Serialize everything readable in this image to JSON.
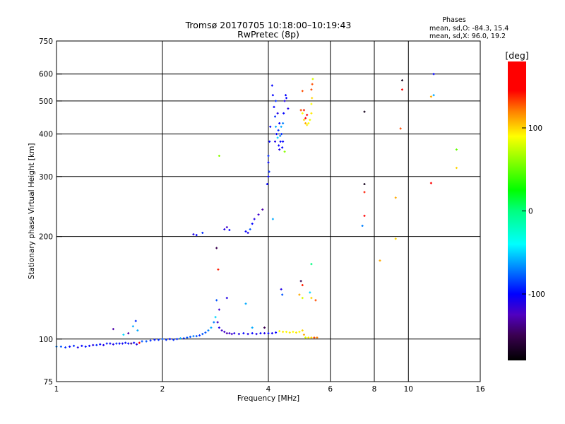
{
  "chart_data": {
    "type": "scatter",
    "title": "Tromsø 20170705 10:18:00–10:19:43",
    "subtitle": "RwPretec (8p)",
    "xlabel": "Frequency [MHz]",
    "ylabel": "Stationary phase Virtual Height [km]",
    "xscale": "log",
    "yscale": "log",
    "xlim": [
      1,
      16
    ],
    "ylim": [
      75,
      750
    ],
    "grid": true,
    "xticks": [
      1,
      2,
      4,
      6,
      8,
      10,
      16
    ],
    "xtick_labels": [
      "1",
      "2",
      "4",
      "6",
      "8",
      "10",
      "16"
    ],
    "xgrid": [
      2,
      4,
      6,
      8,
      10
    ],
    "yticks": [
      75,
      100,
      200,
      300,
      400,
      500,
      600,
      750
    ],
    "ytick_labels": [
      "75",
      "100",
      "200",
      "300",
      "400",
      "500",
      "600",
      "750"
    ],
    "ygrid": [
      100,
      200,
      300,
      400,
      500,
      600
    ],
    "stats": {
      "heading": "Phases",
      "line_o": "mean, sd,O: -84.3, 15.4",
      "line_x": "mean, sd,X:  96.0, 19.2"
    },
    "colorbar": {
      "label": "[deg]",
      "range": [
        -180,
        180
      ],
      "ticks": [
        100,
        0,
        -100
      ],
      "tick_labels": [
        "100",
        "0",
        "-100"
      ],
      "stops": [
        [
          -180,
          "#000000"
        ],
        [
          -150,
          "#3a0050"
        ],
        [
          -125,
          "#5000c0"
        ],
        [
          -100,
          "#0000ff"
        ],
        [
          -70,
          "#0080ff"
        ],
        [
          -40,
          "#00ffff"
        ],
        [
          0,
          "#00ff80"
        ],
        [
          25,
          "#00ff00"
        ],
        [
          90,
          "#ffff00"
        ],
        [
          120,
          "#ff8000"
        ],
        [
          145,
          "#ff0000"
        ],
        [
          180,
          "#ff0000"
        ]
      ]
    },
    "point_fields": [
      "frequency_MHz",
      "height_km",
      "phase_deg"
    ],
    "points": [
      [
        1.0,
        95,
        -70
      ],
      [
        1.03,
        95,
        -80
      ],
      [
        1.06,
        94.5,
        -90
      ],
      [
        1.09,
        95,
        -100
      ],
      [
        1.12,
        95.5,
        -90
      ],
      [
        1.15,
        94.5,
        -110
      ],
      [
        1.18,
        95.5,
        -100
      ],
      [
        1.21,
        95,
        -95
      ],
      [
        1.24,
        95.5,
        -100
      ],
      [
        1.27,
        96,
        -110
      ],
      [
        1.3,
        96,
        -90
      ],
      [
        1.33,
        96.5,
        -100
      ],
      [
        1.36,
        96,
        -110
      ],
      [
        1.39,
        97,
        -95
      ],
      [
        1.42,
        97,
        -100
      ],
      [
        1.45,
        96.5,
        -110
      ],
      [
        1.48,
        97,
        -90
      ],
      [
        1.51,
        97,
        -100
      ],
      [
        1.54,
        97,
        -105
      ],
      [
        1.57,
        97.5,
        -95
      ],
      [
        1.6,
        97,
        -100
      ],
      [
        1.63,
        97,
        -140
      ],
      [
        1.66,
        97.5,
        -100
      ],
      [
        1.69,
        96.5,
        -110
      ],
      [
        1.72,
        97.5,
        165
      ],
      [
        1.75,
        98.5,
        -80
      ],
      [
        1.8,
        98.5,
        -80
      ],
      [
        1.85,
        99,
        -90
      ],
      [
        1.9,
        99.5,
        -95
      ],
      [
        1.95,
        99.5,
        -90
      ],
      [
        2.0,
        100,
        -80
      ],
      [
        2.05,
        99.5,
        -90
      ],
      [
        2.1,
        100,
        -100
      ],
      [
        2.15,
        99.5,
        -90
      ],
      [
        2.2,
        100,
        -90
      ],
      [
        2.25,
        100.5,
        -60
      ],
      [
        2.3,
        100.5,
        -90
      ],
      [
        2.35,
        101,
        -80
      ],
      [
        2.4,
        101.5,
        -80
      ],
      [
        2.45,
        102,
        -70
      ],
      [
        2.5,
        102,
        -80
      ],
      [
        2.55,
        102.5,
        -90
      ],
      [
        2.6,
        103.5,
        -80
      ],
      [
        2.65,
        104.5,
        -80
      ],
      [
        2.7,
        106,
        -70
      ],
      [
        2.75,
        108,
        -60
      ],
      [
        2.8,
        112,
        -70
      ],
      [
        2.83,
        116,
        -50
      ],
      [
        2.87,
        112,
        -120
      ],
      [
        2.9,
        108,
        -110
      ],
      [
        2.95,
        106,
        -120
      ],
      [
        3.0,
        105,
        -120
      ],
      [
        3.05,
        104,
        -130
      ],
      [
        3.1,
        104,
        -120
      ],
      [
        3.15,
        103.5,
        -120
      ],
      [
        3.2,
        104,
        -110
      ],
      [
        3.3,
        103.5,
        -110
      ],
      [
        3.4,
        104,
        -100
      ],
      [
        3.5,
        103.5,
        -110
      ],
      [
        3.6,
        104,
        -100
      ],
      [
        3.7,
        103.5,
        -110
      ],
      [
        3.8,
        104,
        -100
      ],
      [
        3.9,
        104,
        -110
      ],
      [
        4.0,
        104,
        -100
      ],
      [
        4.1,
        104,
        -105
      ],
      [
        4.2,
        104.5,
        -100
      ],
      [
        4.3,
        105.5,
        90
      ],
      [
        4.4,
        105,
        95
      ],
      [
        4.5,
        105,
        90
      ],
      [
        4.6,
        104.5,
        95
      ],
      [
        4.7,
        105,
        90
      ],
      [
        4.8,
        104.5,
        95
      ],
      [
        4.9,
        105,
        90
      ],
      [
        5.0,
        106,
        100
      ],
      [
        5.05,
        103,
        110
      ],
      [
        5.1,
        101,
        80
      ],
      [
        5.2,
        101,
        95
      ],
      [
        5.3,
        101,
        100
      ],
      [
        5.4,
        101,
        130
      ],
      [
        5.5,
        101,
        120
      ],
      [
        1.45,
        107,
        -130
      ],
      [
        1.55,
        103,
        -50
      ],
      [
        1.6,
        104,
        -130
      ],
      [
        1.68,
        113,
        -90
      ],
      [
        1.65,
        109,
        -60
      ],
      [
        1.7,
        106,
        -60
      ],
      [
        2.85,
        130,
        -80
      ],
      [
        2.9,
        122,
        -120
      ],
      [
        2.85,
        185,
        -150
      ],
      [
        2.88,
        160,
        140
      ],
      [
        3.05,
        132,
        -110
      ],
      [
        3.45,
        127,
        -60
      ],
      [
        4.35,
        140,
        -110
      ],
      [
        4.38,
        135,
        -80
      ],
      [
        4.95,
        148,
        -150
      ],
      [
        5.0,
        144,
        140
      ],
      [
        4.9,
        135,
        110
      ],
      [
        5.0,
        132,
        80
      ],
      [
        5.25,
        137,
        -50
      ],
      [
        5.3,
        132,
        100
      ],
      [
        5.45,
        130,
        130
      ],
      [
        5.3,
        166,
        0
      ],
      [
        3.9,
        108,
        -150
      ],
      [
        3.6,
        108,
        -60
      ],
      [
        2.45,
        203,
        -110
      ],
      [
        2.5,
        202,
        -100
      ],
      [
        2.6,
        205,
        -90
      ],
      [
        3.0,
        210,
        -110
      ],
      [
        3.05,
        213,
        -120
      ],
      [
        3.1,
        209,
        -100
      ],
      [
        3.45,
        207,
        -100
      ],
      [
        3.5,
        205,
        -110
      ],
      [
        3.55,
        210,
        -80
      ],
      [
        3.6,
        218,
        -100
      ],
      [
        3.65,
        225,
        -110
      ],
      [
        3.75,
        232,
        -120
      ],
      [
        3.85,
        240,
        -130
      ],
      [
        3.97,
        285,
        -100
      ],
      [
        4.0,
        300,
        -100
      ],
      [
        4.02,
        310,
        -90
      ],
      [
        4.0,
        330,
        -100
      ],
      [
        4.0,
        345,
        -90
      ],
      [
        4.03,
        380,
        -100
      ],
      [
        4.05,
        420,
        -100
      ],
      [
        4.12,
        225,
        -60
      ],
      [
        4.1,
        555,
        -100
      ],
      [
        4.12,
        520,
        -100
      ],
      [
        4.15,
        480,
        -100
      ],
      [
        4.18,
        450,
        -90
      ],
      [
        4.2,
        420,
        -60
      ],
      [
        4.22,
        400,
        -100
      ],
      [
        4.25,
        390,
        -50
      ],
      [
        4.28,
        370,
        -100
      ],
      [
        4.3,
        360,
        -110
      ],
      [
        4.33,
        380,
        -100
      ],
      [
        4.36,
        400,
        -90
      ],
      [
        4.4,
        430,
        -70
      ],
      [
        4.42,
        460,
        -100
      ],
      [
        4.45,
        500,
        -110
      ],
      [
        4.48,
        520,
        -100
      ],
      [
        4.2,
        500,
        -90
      ],
      [
        4.25,
        460,
        -110
      ],
      [
        4.3,
        430,
        -100
      ],
      [
        4.35,
        420,
        -60
      ],
      [
        4.38,
        365,
        -100
      ],
      [
        4.32,
        395,
        -70
      ],
      [
        4.27,
        410,
        -90
      ],
      [
        4.18,
        380,
        -110
      ],
      [
        4.4,
        380,
        -100
      ],
      [
        4.5,
        510,
        -100
      ],
      [
        4.55,
        475,
        -110
      ],
      [
        4.45,
        355,
        60
      ],
      [
        5.0,
        460,
        90
      ],
      [
        5.05,
        440,
        100
      ],
      [
        5.1,
        430,
        110
      ],
      [
        5.15,
        425,
        95
      ],
      [
        5.2,
        430,
        90
      ],
      [
        5.25,
        440,
        85
      ],
      [
        5.3,
        460,
        95
      ],
      [
        5.3,
        490,
        90
      ],
      [
        5.32,
        510,
        100
      ],
      [
        5.3,
        540,
        130
      ],
      [
        5.33,
        560,
        130
      ],
      [
        5.35,
        580,
        80
      ],
      [
        5.1,
        445,
        150
      ],
      [
        5.05,
        470,
        140
      ],
      [
        4.95,
        470,
        130
      ],
      [
        5.0,
        535,
        130
      ],
      [
        5.15,
        455,
        160
      ],
      [
        7.5,
        465,
        -170
      ],
      [
        7.5,
        285,
        -170
      ],
      [
        7.5,
        270,
        140
      ],
      [
        7.5,
        230,
        160
      ],
      [
        7.4,
        215,
        -70
      ],
      [
        8.3,
        170,
        110
      ],
      [
        9.2,
        260,
        110
      ],
      [
        9.2,
        197,
        100
      ],
      [
        9.6,
        575,
        -170
      ],
      [
        9.6,
        540,
        160
      ],
      [
        9.5,
        415,
        130
      ],
      [
        11.8,
        600,
        -100
      ],
      [
        11.8,
        520,
        -60
      ],
      [
        11.6,
        515,
        110
      ],
      [
        11.6,
        287,
        150
      ],
      [
        13.7,
        360,
        50
      ],
      [
        13.7,
        318,
        100
      ],
      [
        2.9,
        345,
        60
      ]
    ]
  }
}
